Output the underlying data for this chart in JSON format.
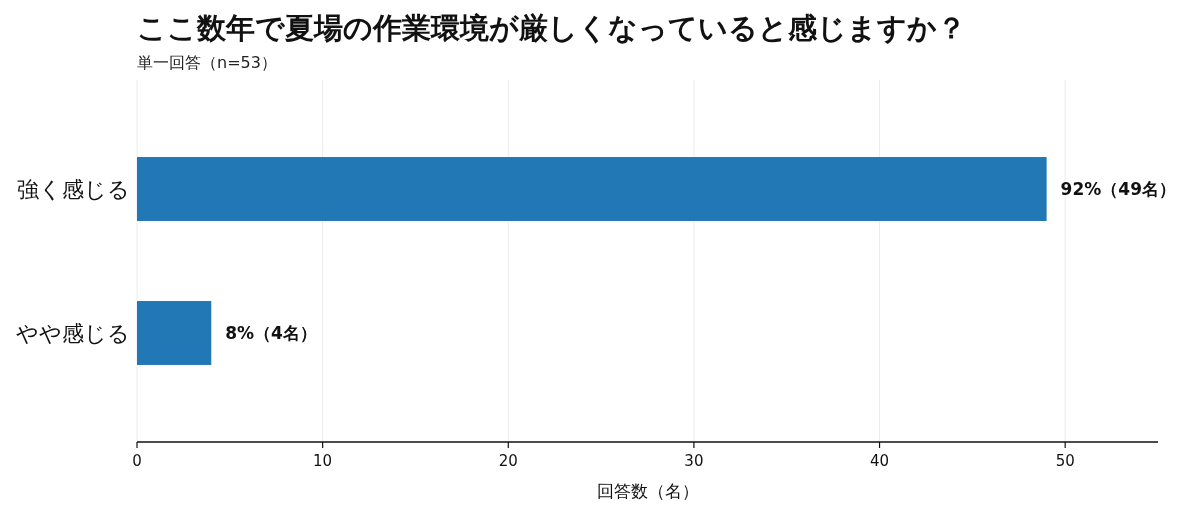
{
  "chart_data": {
    "type": "bar",
    "orientation": "horizontal",
    "title": "ここ数年で夏場の作業環境が厳しくなっていると感じますか？",
    "subtitle": "単一回答（n=53）",
    "xlabel": "回答数（名）",
    "categories": [
      "強く感じる",
      "やや感じる"
    ],
    "values": [
      49,
      4
    ],
    "color": "#2277b5",
    "value_labels": [
      "92%（49名）",
      "8%（4名）"
    ],
    "xlim": [
      0,
      55
    ],
    "xticks": [
      0,
      10,
      20,
      30,
      40,
      50
    ],
    "grid": "x"
  }
}
